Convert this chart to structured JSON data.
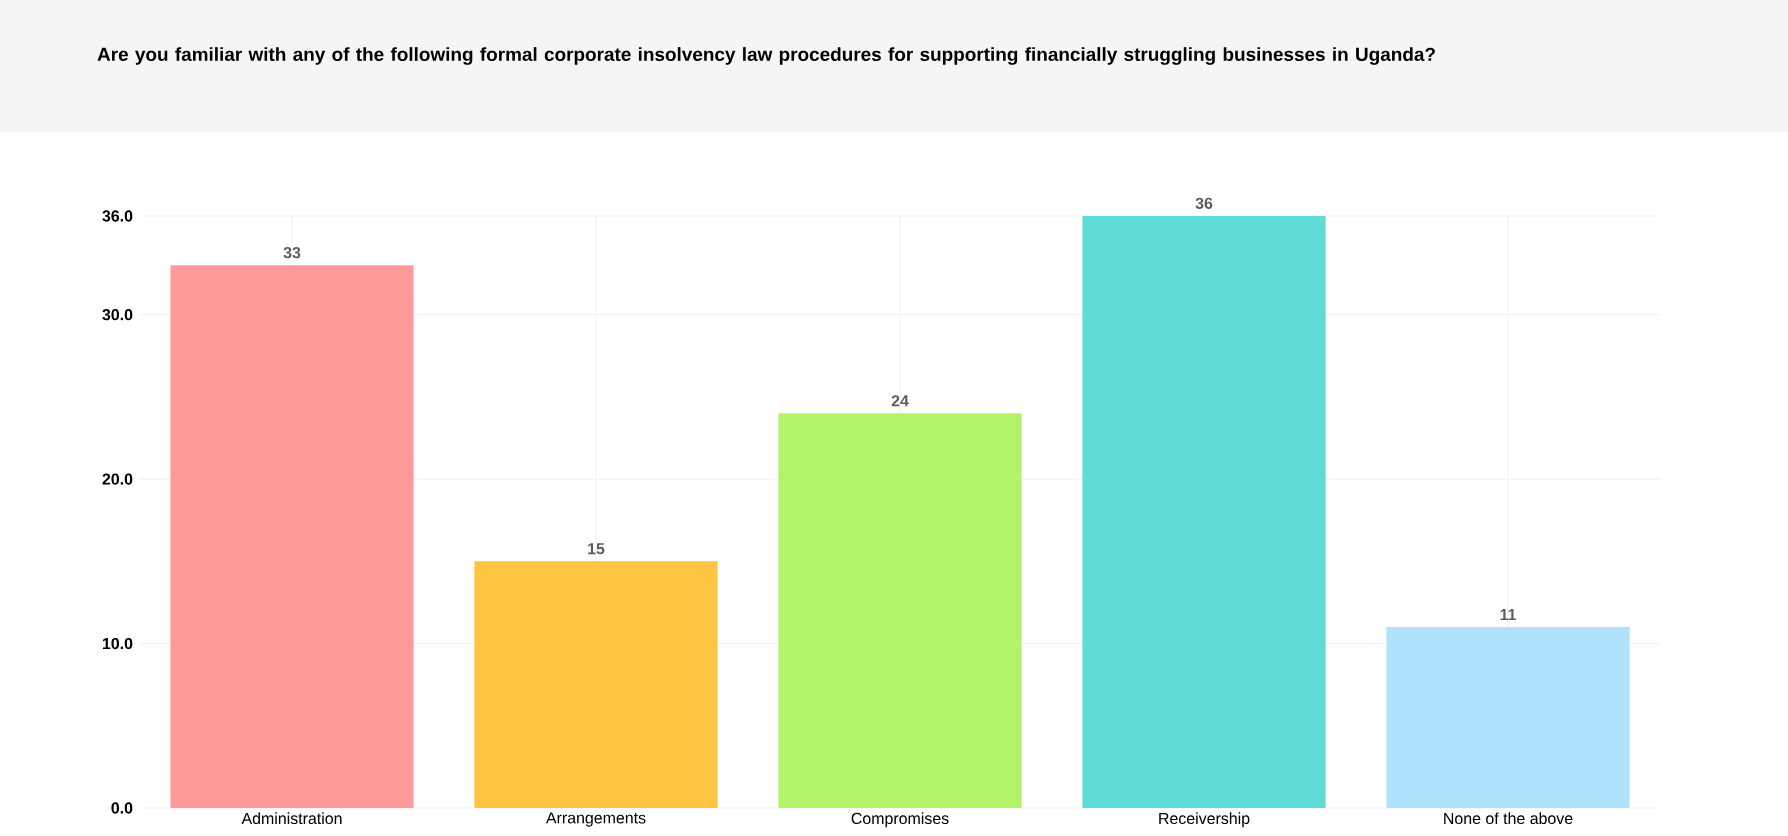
{
  "chart_data": {
    "type": "bar",
    "title": "Are you familiar with any of the following formal corporate insolvency law procedures for supporting financially struggling businesses in Uganda?",
    "categories": [
      "Administration",
      "Arrangements",
      "Compromises",
      "Receivership",
      "None of the above"
    ],
    "values": [
      33,
      15,
      24,
      36,
      11
    ],
    "colors": [
      "#ff9a9a",
      "#ffc440",
      "#b3f36a",
      "#5fdbd5",
      "#aee3fb"
    ],
    "ylim": [
      0,
      36
    ],
    "yticks": [
      {
        "value": 0,
        "label": "0.0"
      },
      {
        "value": 10,
        "label": "10.0"
      },
      {
        "value": 20,
        "label": "20.0"
      },
      {
        "value": 30,
        "label": "30.0"
      },
      {
        "value": 36,
        "label": "36.0"
      }
    ],
    "grid": true,
    "data_labels": true
  }
}
